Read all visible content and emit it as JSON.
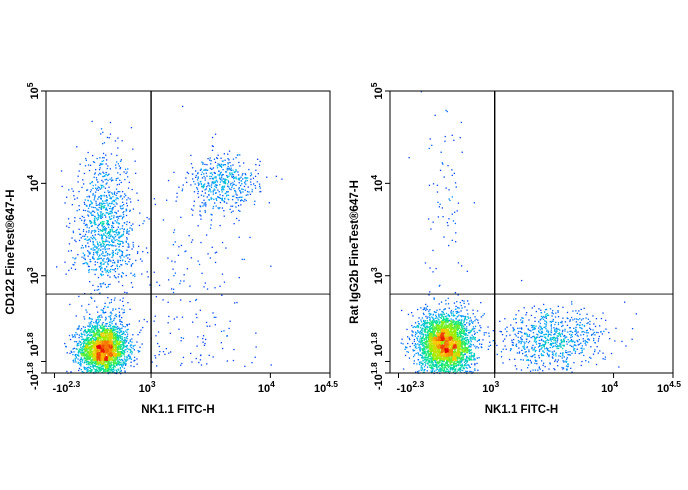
{
  "chart_data": [
    {
      "type": "scatter",
      "xlabel": "NK1.1 FITC-H",
      "ylabel": "CD122 FineTest®647-H",
      "x_ticks": [
        {
          "value": -200,
          "base": "-10",
          "exp": "2.3"
        },
        {
          "value": 1000,
          "base": "10",
          "exp": "3"
        },
        {
          "value": 10000,
          "base": "10",
          "exp": "4"
        },
        {
          "value": 31623,
          "base": "10",
          "exp": "4.5"
        }
      ],
      "y_ticks": [
        {
          "value": -63,
          "base": "-10",
          "exp": "1.8"
        },
        {
          "value": 63,
          "base": "10",
          "exp": "1.8"
        },
        {
          "value": 1000,
          "base": "10",
          "exp": "3"
        },
        {
          "value": 10000,
          "base": "10",
          "exp": "4"
        },
        {
          "value": 100000,
          "base": "10",
          "exp": "5"
        }
      ],
      "xlim": [
        -200,
        31623
      ],
      "ylim": [
        -63,
        100000
      ],
      "x_scale": "biexponential",
      "y_scale": "biexponential",
      "quadrant_gate": {
        "x": 1000,
        "y": 800
      },
      "color_mode": "density (blue-low to red-high)",
      "populations": [
        {
          "x": 400,
          "x_sd": 150,
          "x_scale": "linear",
          "y": 200,
          "y_sd": 140,
          "y_scale": "linear",
          "n": 2600
        },
        {
          "x": 420,
          "x_sd": 180,
          "x_scale": "linear",
          "y": 3000,
          "y_sd": 0.4,
          "y_scale": "log",
          "n": 1100
        },
        {
          "x": 4000,
          "x_sd": 0.15,
          "x_scale": "log",
          "y": 10000,
          "y_sd": 0.15,
          "y_scale": "log",
          "n": 450
        },
        {
          "x": 2000,
          "x_sd": 0.3,
          "x_scale": "log",
          "y": 1000,
          "y_sd": 0.6,
          "y_scale": "log",
          "n": 220
        }
      ]
    },
    {
      "type": "scatter",
      "xlabel": "NK1.1 FITC-H",
      "ylabel": "Rat IgG2b FineTest®647-H",
      "x_ticks": [
        {
          "value": -200,
          "base": "-10",
          "exp": "2.3"
        },
        {
          "value": 1000,
          "base": "10",
          "exp": "3"
        },
        {
          "value": 10000,
          "base": "10",
          "exp": "4"
        },
        {
          "value": 31623,
          "base": "10",
          "exp": "4.5"
        }
      ],
      "y_ticks": [
        {
          "value": -63,
          "base": "-10",
          "exp": "1.8"
        },
        {
          "value": 63,
          "base": "10",
          "exp": "1.8"
        },
        {
          "value": 1000,
          "base": "10",
          "exp": "3"
        },
        {
          "value": 10000,
          "base": "10",
          "exp": "4"
        },
        {
          "value": 100000,
          "base": "10",
          "exp": "5"
        }
      ],
      "xlim": [
        -200,
        31623
      ],
      "ylim": [
        -63,
        100000
      ],
      "x_scale": "biexponential",
      "y_scale": "biexponential",
      "quadrant_gate": {
        "x": 1000,
        "y": 800
      },
      "color_mode": "density (blue-low to red-high)",
      "populations": [
        {
          "x": 380,
          "x_sd": 170,
          "x_scale": "linear",
          "y": 260,
          "y_sd": 170,
          "y_scale": "linear",
          "n": 3200
        },
        {
          "x": 3000,
          "x_sd": 0.22,
          "x_scale": "log",
          "y": 300,
          "y_sd": 170,
          "y_scale": "linear",
          "n": 750
        },
        {
          "x": 400,
          "x_sd": 150,
          "x_scale": "linear",
          "y": 6000,
          "y_sd": 0.5,
          "y_scale": "log",
          "n": 70
        }
      ]
    }
  ]
}
